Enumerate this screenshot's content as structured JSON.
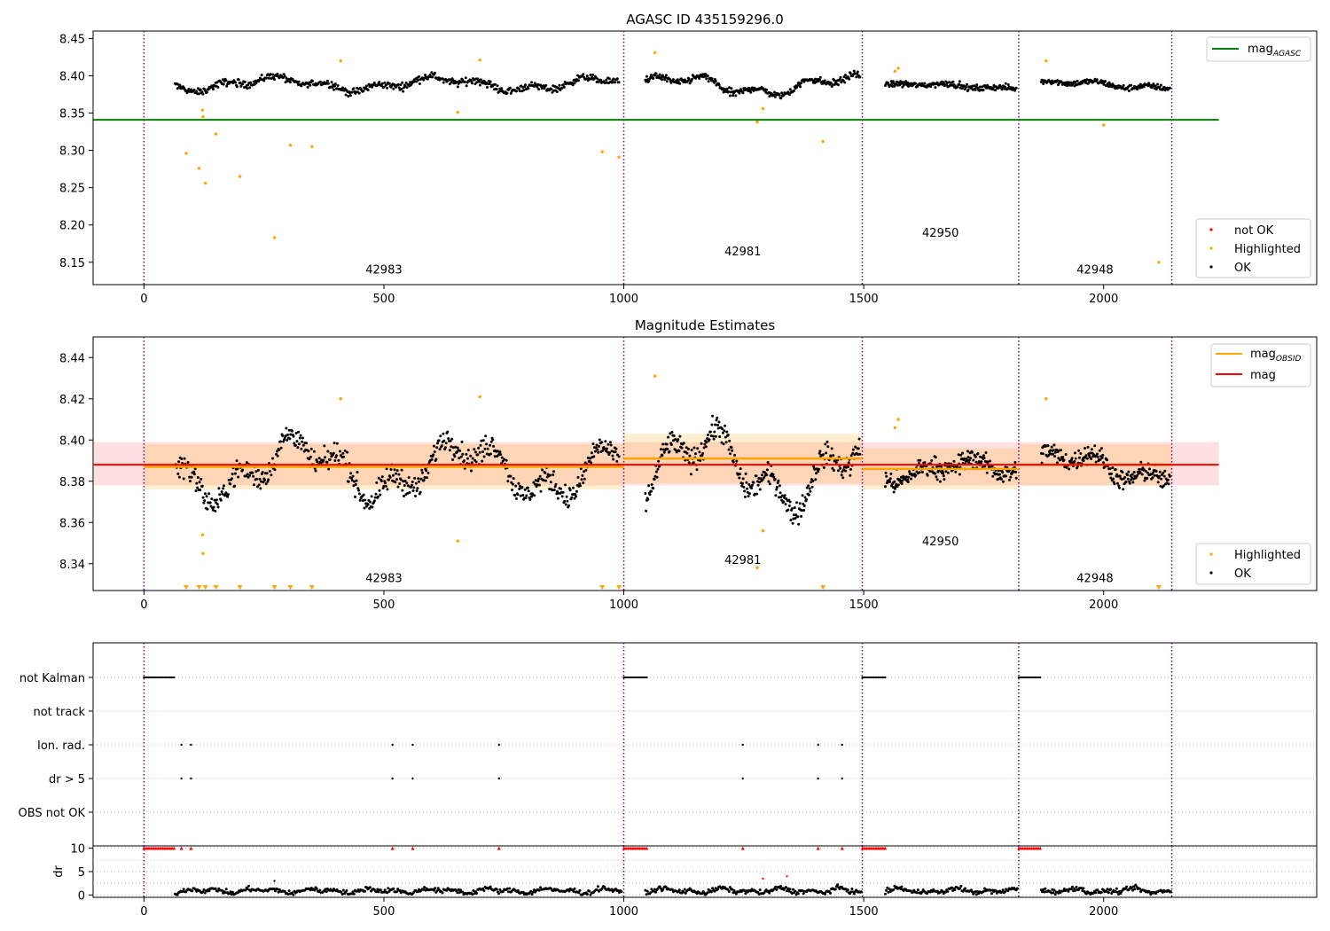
{
  "chart_data": [
    {
      "type": "scatter",
      "title": "AGASC ID 435159296.0",
      "xlim": [
        -106,
        2444
      ],
      "ylim": [
        8.12,
        8.46
      ],
      "xticks": [
        0,
        500,
        1000,
        1500,
        2000
      ],
      "yticks": [
        8.15,
        8.2,
        8.25,
        8.3,
        8.35,
        8.4,
        8.45
      ],
      "ytick_labels": [
        "8.15",
        "8.20",
        "8.25",
        "8.30",
        "8.35",
        "8.40",
        "8.45"
      ],
      "legend": {
        "placement": "top-right",
        "entries": [
          {
            "label": "mag",
            "sub": "AGASC",
            "color": "#008000"
          }
        ]
      },
      "legend2": {
        "placement": "bottom-right",
        "entries": [
          {
            "label": "not OK",
            "color": "#ff0000"
          },
          {
            "label": "Highlighted",
            "color": "#ffa500"
          },
          {
            "label": "OK",
            "color": "#000000"
          }
        ]
      },
      "agasc_mag": 8.341,
      "agasc_x_range": [
        0,
        2240
      ],
      "observation_bounds": [
        0,
        1000,
        1497,
        1823,
        2142
      ],
      "obsid_labels": [
        {
          "text": "42983",
          "x": 500,
          "y": 8.135
        },
        {
          "text": "42981",
          "x": 1248,
          "y": 8.159
        },
        {
          "text": "42950",
          "x": 1660,
          "y": 8.184
        },
        {
          "text": "42948",
          "x": 1982,
          "y": 8.135
        }
      ],
      "ok_series": [
        {
          "x0": 65,
          "x1": 990,
          "base": 8.389,
          "amp": 0.007,
          "noise": 0.006,
          "n": 560
        },
        {
          "x0": 1045,
          "x1": 1492,
          "base": 8.387,
          "amp": 0.01,
          "noise": 0.006,
          "n": 300
        },
        {
          "x0": 1545,
          "x1": 1818,
          "base": 8.386,
          "amp": 0.003,
          "noise": 0.005,
          "n": 200
        },
        {
          "x0": 1870,
          "x1": 2138,
          "base": 8.388,
          "amp": 0.004,
          "noise": 0.005,
          "n": 190
        }
      ],
      "highlighted_points": [
        [
          88,
          8.296
        ],
        [
          115,
          8.276
        ],
        [
          122,
          8.354
        ],
        [
          123,
          8.345
        ],
        [
          128,
          8.256
        ],
        [
          150,
          8.322
        ],
        [
          200,
          8.265
        ],
        [
          272,
          8.183
        ],
        [
          305,
          8.307
        ],
        [
          350,
          8.305
        ],
        [
          410,
          8.42
        ],
        [
          654,
          8.351
        ],
        [
          700,
          8.421
        ],
        [
          955,
          8.298
        ],
        [
          990,
          8.291
        ],
        [
          1065,
          8.431
        ],
        [
          1278,
          8.338
        ],
        [
          1290,
          8.356
        ],
        [
          1415,
          8.312
        ],
        [
          1565,
          8.406
        ],
        [
          1572,
          8.41
        ],
        [
          1880,
          8.42
        ],
        [
          2000,
          8.334
        ],
        [
          2115,
          8.15
        ]
      ]
    },
    {
      "type": "scatter",
      "title": "Magnitude Estimates",
      "xlim": [
        -106,
        2444
      ],
      "ylim": [
        8.327,
        8.45
      ],
      "xticks": [
        0,
        500,
        1000,
        1500,
        2000
      ],
      "yticks": [
        8.34,
        8.36,
        8.38,
        8.4,
        8.42,
        8.44
      ],
      "ytick_labels": [
        "8.34",
        "8.36",
        "8.38",
        "8.40",
        "8.42",
        "8.44"
      ],
      "legend": {
        "placement": "top-right",
        "entries": [
          {
            "label": "mag",
            "sub": "OBSID",
            "color": "#ffa500"
          },
          {
            "label": "mag",
            "sub": "",
            "color": "#ff0000"
          }
        ]
      },
      "legend2": {
        "placement": "bottom-right",
        "entries": [
          {
            "label": "Highlighted",
            "color": "#ffa500"
          },
          {
            "label": "OK",
            "color": "#000000"
          }
        ]
      },
      "mag": 8.388,
      "mag_band": [
        8.378,
        8.399
      ],
      "mag_x_range": [
        -106,
        2240
      ],
      "obsid_mags": [
        {
          "x0": 0,
          "x1": 1000,
          "mag": 8.387,
          "band": [
            8.376,
            8.398
          ]
        },
        {
          "x0": 1000,
          "x1": 1497,
          "mag": 8.391,
          "band": [
            8.379,
            8.403
          ]
        },
        {
          "x0": 1497,
          "x1": 1823,
          "mag": 8.386,
          "band": [
            8.376,
            8.396
          ]
        },
        {
          "x0": 1823,
          "x1": 2142,
          "mag": 8.388,
          "band": [
            8.378,
            8.398
          ]
        }
      ],
      "observation_bounds": [
        0,
        1000,
        1497,
        1823,
        2142
      ],
      "obsid_labels": [
        {
          "text": "42983",
          "x": 500,
          "y": 8.331
        },
        {
          "text": "42981",
          "x": 1248,
          "y": 8.34
        },
        {
          "text": "42950",
          "x": 1660,
          "y": 8.349
        },
        {
          "text": "42948",
          "x": 1982,
          "y": 8.331
        }
      ],
      "ok_series": [
        {
          "x0": 65,
          "x1": 990,
          "base": 8.386,
          "amp": 0.011,
          "noise": 0.007,
          "n": 620
        },
        {
          "x0": 1045,
          "x1": 1492,
          "base": 8.386,
          "amp": 0.014,
          "noise": 0.007,
          "n": 330
        },
        {
          "x0": 1545,
          "x1": 1818,
          "base": 8.385,
          "amp": 0.004,
          "noise": 0.006,
          "n": 230
        },
        {
          "x0": 1870,
          "x1": 2138,
          "base": 8.387,
          "amp": 0.006,
          "noise": 0.006,
          "n": 210
        }
      ],
      "highlighted_points": [
        [
          122,
          8.354
        ],
        [
          123,
          8.345
        ],
        [
          410,
          8.42
        ],
        [
          654,
          8.351
        ],
        [
          700,
          8.421
        ],
        [
          1065,
          8.431
        ],
        [
          1278,
          8.338
        ],
        [
          1290,
          8.356
        ],
        [
          1565,
          8.406
        ],
        [
          1572,
          8.41
        ],
        [
          1880,
          8.42
        ]
      ],
      "below_range_markers": [
        88,
        115,
        128,
        150,
        200,
        272,
        305,
        350,
        955,
        990,
        1415,
        2115
      ]
    },
    {
      "type": "scatter",
      "title": "",
      "xlim": [
        -106,
        2444
      ],
      "categories": [
        "not Kalman",
        "not track",
        "Ion. rad.",
        "dr > 5",
        "OBS not OK"
      ],
      "observation_bounds": [
        0,
        1000,
        1497,
        1823,
        2142
      ],
      "not_kalman_ranges": [
        [
          0,
          65
        ],
        [
          1000,
          1048
        ],
        [
          1497,
          1545
        ],
        [
          1823,
          1870
        ]
      ],
      "flag_points": [
        78,
        98,
        518,
        560,
        740,
        1248,
        1405,
        1455
      ]
    },
    {
      "type": "scatter",
      "title": "",
      "ylabel": "dr",
      "xlim": [
        -106,
        2444
      ],
      "ylim": [
        -0.5,
        10.5
      ],
      "xticks": [
        0,
        500,
        1000,
        1500,
        2000
      ],
      "yticks": [
        0,
        5,
        10
      ],
      "ytick_labels": [
        "0",
        "5",
        "10"
      ],
      "cap_value": 10,
      "cap_ranges": [
        [
          0,
          65
        ],
        [
          1000,
          1048
        ],
        [
          1497,
          1545
        ],
        [
          1823,
          1870
        ]
      ],
      "cap_points": [
        78,
        98,
        518,
        560,
        740,
        1248,
        1405,
        1455
      ],
      "outlier_points": [
        [
          1290,
          3.5
        ],
        [
          1340,
          4.0
        ],
        [
          272,
          3.0
        ]
      ],
      "dr_series": [
        {
          "x0": 65,
          "x1": 995,
          "n": 420
        },
        {
          "x0": 1045,
          "x1": 1495,
          "n": 210
        },
        {
          "x0": 1545,
          "x1": 1820,
          "n": 130
        },
        {
          "x0": 1870,
          "x1": 2140,
          "n": 130
        }
      ],
      "observation_bounds": [
        0,
        1000,
        1497,
        1823,
        2142
      ]
    }
  ]
}
